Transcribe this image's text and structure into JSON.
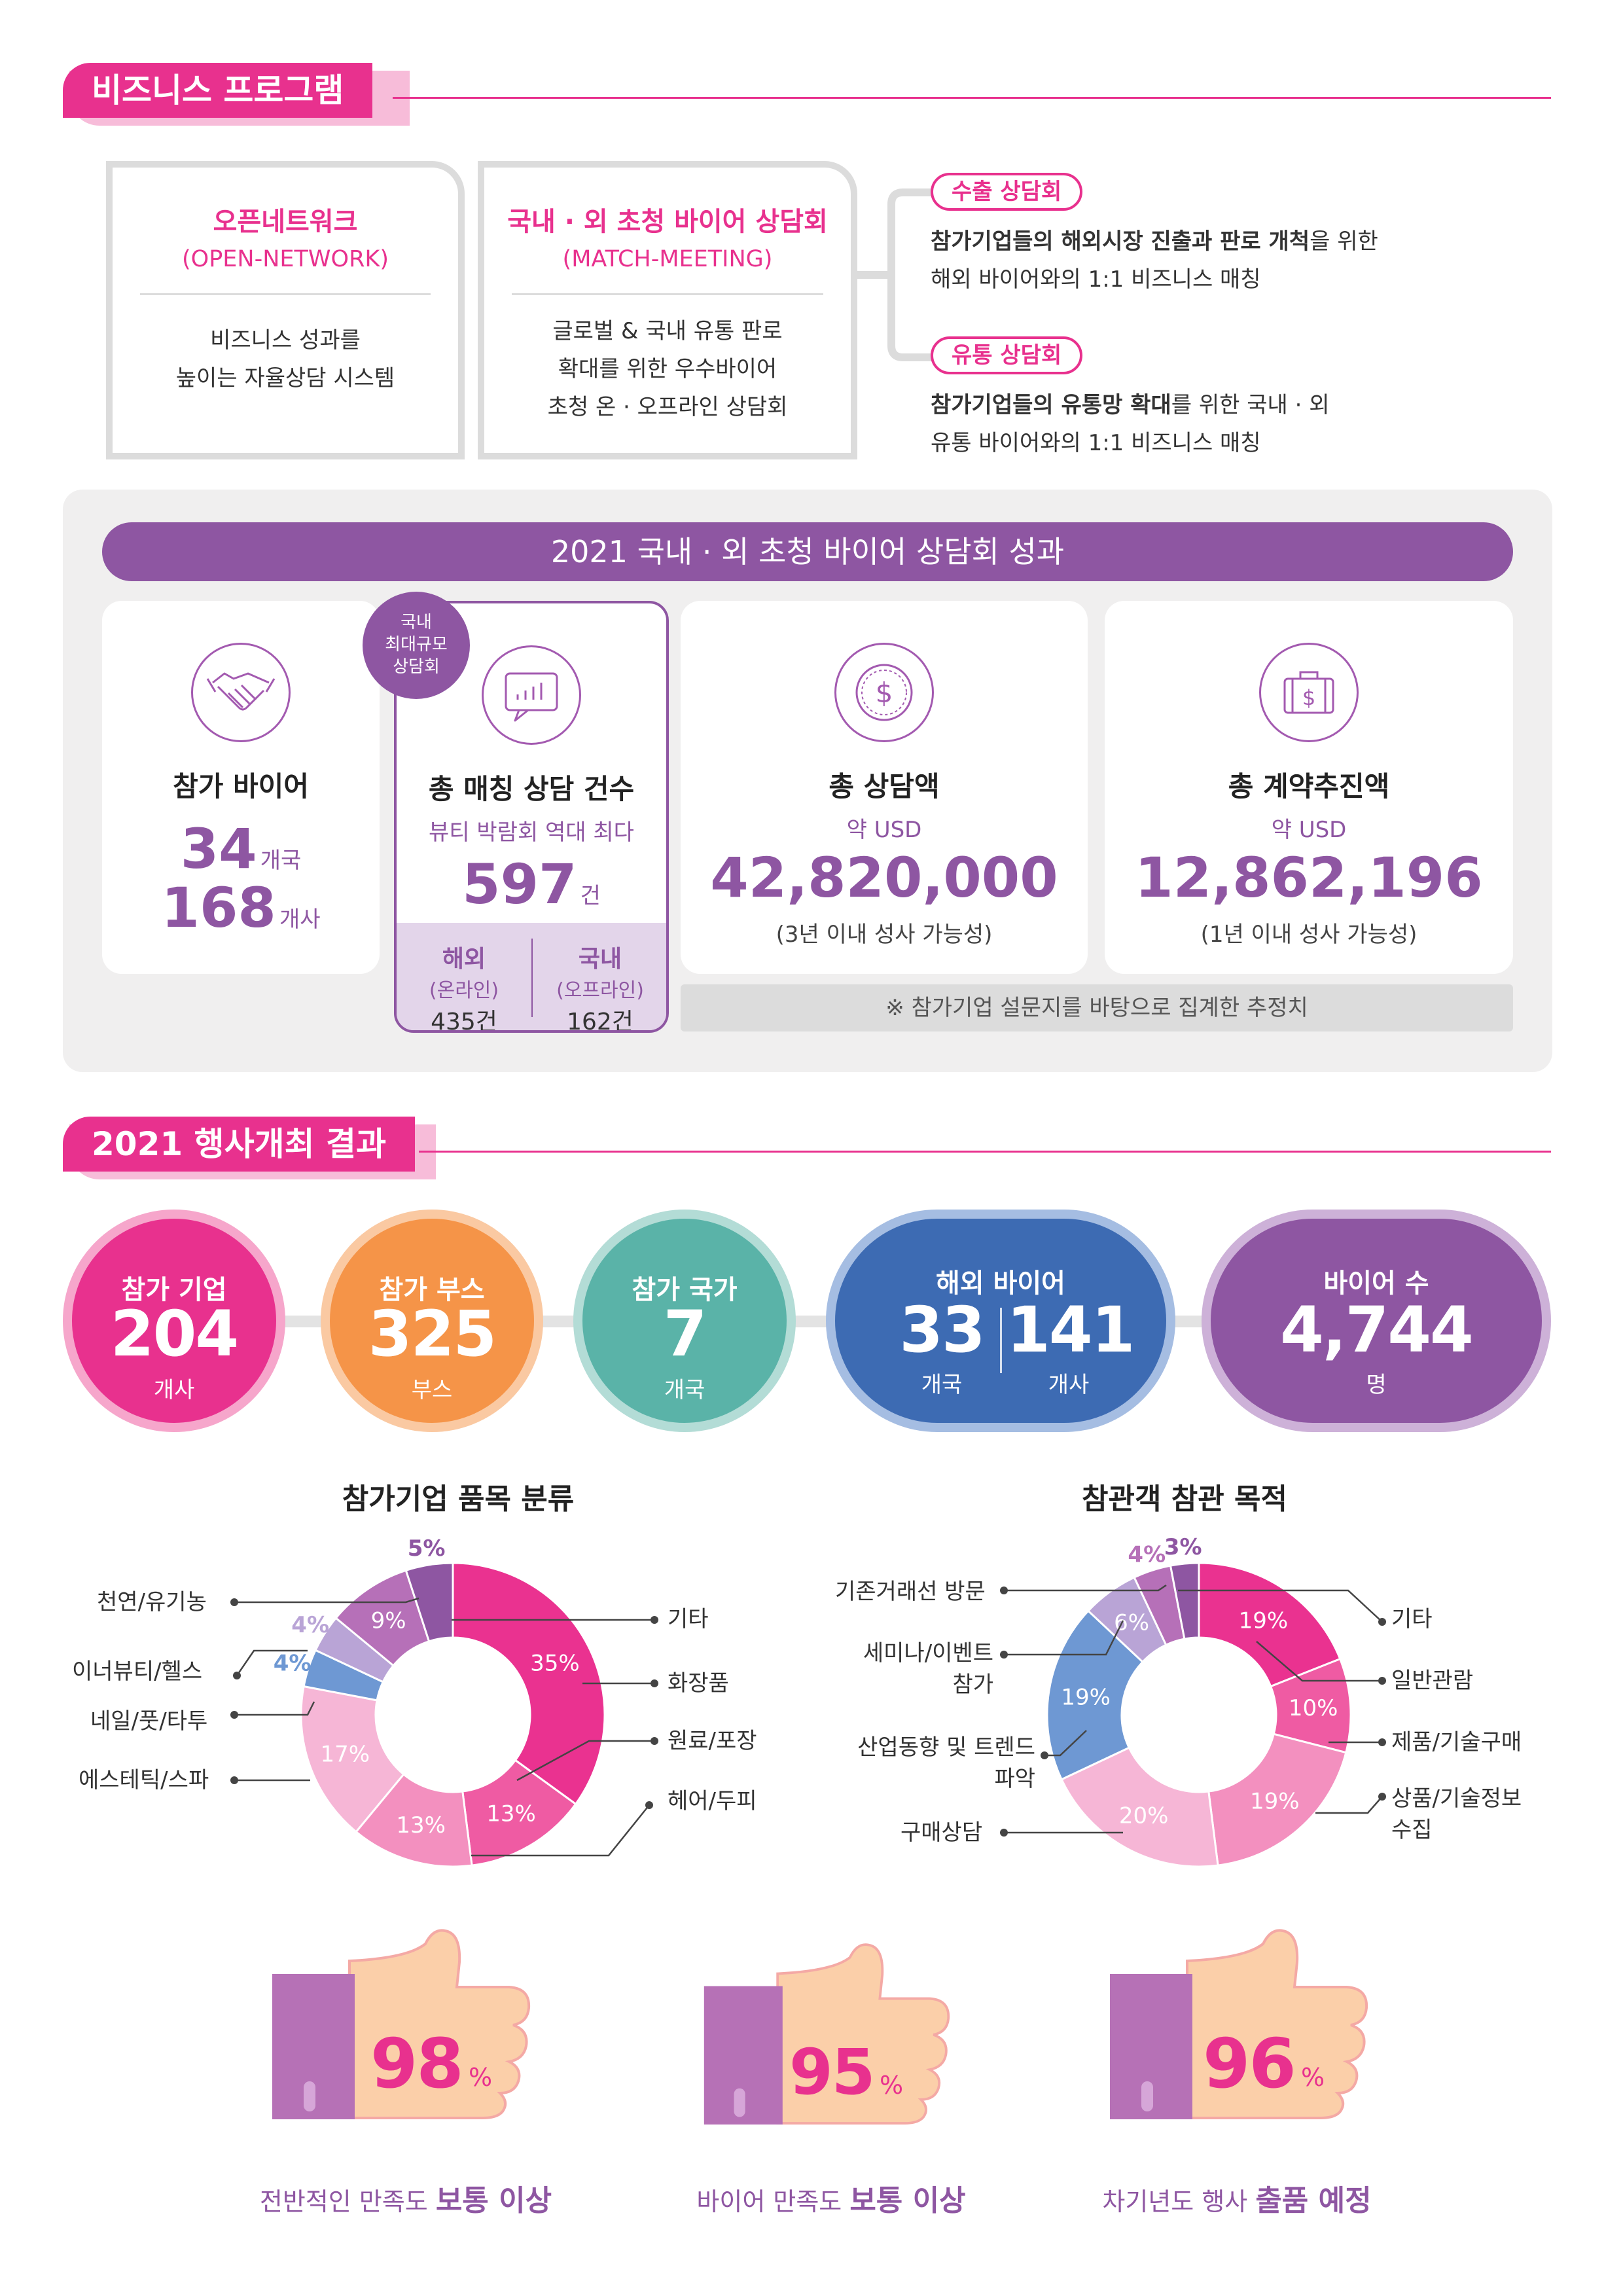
{
  "section1": {
    "title": "비즈니스 프로그램",
    "open_network": {
      "title": "오픈네트워크",
      "subtitle": "(OPEN-NETWORK)",
      "desc_line1": "비즈니스 성과를",
      "desc_line2": "높이는 자율상담 시스템"
    },
    "match_meeting": {
      "title": "국내 · 외 초청 바이어 상담회",
      "subtitle": "(MATCH-MEETING)",
      "desc_line1": "글로벌 & 국내 유통 판로",
      "desc_line2": "확대를 위한 우수바이어",
      "desc_line3": "초청 온 · 오프라인 상담회"
    },
    "export": {
      "label": "수출 상담회",
      "line1_bold_a": "참가기업들의 해외시장 진출과 판로 개척",
      "line1_rest": "을 위한",
      "line2": "해외 바이어와의 1:1 비즈니스 매칭"
    },
    "distribution": {
      "label": "유통 상담회",
      "line1_bold_a": "참가기업들의 유통망 확대",
      "line1_rest": "를 위한 국내 · 외",
      "line2": "유통 바이어와의 1:1 비즈니스 매칭"
    }
  },
  "results2021": {
    "banner": "2021 국내 · 외 초청 바이어 상담회 성과",
    "badge_line1": "국내",
    "badge_line2": "최대규모",
    "badge_line3": "상담회",
    "buyers": {
      "title": "참가 바이어",
      "countries": "34",
      "countries_unit": "개국",
      "companies": "168",
      "companies_unit": "개사"
    },
    "matching": {
      "title": "총 매칭 상담 건수",
      "subtitle": "뷰티 박람회 역대 최다",
      "count": "597",
      "count_unit": "건",
      "overseas_label": "해외",
      "overseas_mode": "(온라인)",
      "overseas_count": "435건",
      "domestic_label": "국내",
      "domestic_mode": "(오프라인)",
      "domestic_count": "162건"
    },
    "consult_amount": {
      "title": "총 상담액",
      "prefix": "약 USD",
      "value": "42,820,000",
      "note": "(3년 이내 성사 가능성)"
    },
    "contract_amount": {
      "title": "총 계약추진액",
      "prefix": "약 USD",
      "value": "12,862,196",
      "note": "(1년 이내 성사 가능성)"
    },
    "footnote": "※ 참가기업 설문지를 바탕으로 집계한 추정치"
  },
  "section2": {
    "title": "2021 행사개최 결과",
    "companies": {
      "label": "참가 기업",
      "value": "204",
      "unit": "개사",
      "color": "#e8318e"
    },
    "booths": {
      "label": "참가 부스",
      "value": "325",
      "unit": "부스",
      "color": "#f59448"
    },
    "countries": {
      "label": "참가 국가",
      "value": "7",
      "unit": "개국",
      "color": "#5ab3a8"
    },
    "overseas_buyers": {
      "label": "해외 바이어",
      "value_a": "33",
      "unit_a": "개국",
      "value_b": "141",
      "unit_b": "개사",
      "color": "#3d6bb3"
    },
    "buyer_count": {
      "label": "바이어 수",
      "value": "4,744",
      "unit": "명",
      "color": "#8e56a2"
    }
  },
  "chart_data": [
    {
      "type": "pie",
      "title": "참가기업 품목 분류",
      "categories": [
        "기타",
        "화장품",
        "원료/포장",
        "헤어/두피",
        "에스테틱/스파",
        "네일/풋/타투",
        "이너뷰티/헬스",
        "천연/유기농"
      ],
      "slices": [
        {
          "label": "35%",
          "value": 35,
          "color": "#ea3290"
        },
        {
          "label": "13%",
          "value": 13,
          "color": "#ef5ba3"
        },
        {
          "label": "13%",
          "value": 13,
          "color": "#f390bf"
        },
        {
          "label": "17%",
          "value": 17,
          "color": "#f6b6d6"
        },
        {
          "label": "4%",
          "value": 4,
          "color": "#6e98d3"
        },
        {
          "label": "4%",
          "value": 4,
          "color": "#b9a4d6"
        },
        {
          "label": "9%",
          "value": 9,
          "color": "#b670b8"
        },
        {
          "label": "5%",
          "value": 5,
          "color": "#8e56a2"
        }
      ]
    },
    {
      "type": "pie",
      "title": "참관객 참관 목적",
      "categories": [
        "기타",
        "일반관람",
        "제품/기술구매",
        "상품/기술정보 수집",
        "구매상담",
        "산업동향 및 트렌드 파악",
        "세미나/이벤트 참가",
        "기존거래선 방문"
      ],
      "slices": [
        {
          "label": "19%",
          "value": 19,
          "color": "#ea3290"
        },
        {
          "label": "10%",
          "value": 10,
          "color": "#ef5ba3"
        },
        {
          "label": "19%",
          "value": 19,
          "color": "#f390bf"
        },
        {
          "label": "20%",
          "value": 20,
          "color": "#f6b6d6"
        },
        {
          "label": "19%",
          "value": 19,
          "color": "#6e98d3"
        },
        {
          "label": "6%",
          "value": 6,
          "color": "#b9a4d6"
        },
        {
          "label": "4%",
          "value": 4,
          "color": "#b670b8"
        },
        {
          "label": "3%",
          "value": 3,
          "color": "#8e56a2"
        }
      ]
    }
  ],
  "satisfaction": {
    "overall": {
      "value": "98",
      "pct": "%",
      "cap_a": "전반적인 만족도 ",
      "cap_b": "보통 이상"
    },
    "buyer": {
      "value": "95",
      "pct": "%",
      "cap_a": "바이어 만족도 ",
      "cap_b": "보통 이상"
    },
    "next": {
      "value": "96",
      "pct": "%",
      "cap_a": "차기년도 행사 ",
      "cap_b": "출품 예정"
    }
  }
}
